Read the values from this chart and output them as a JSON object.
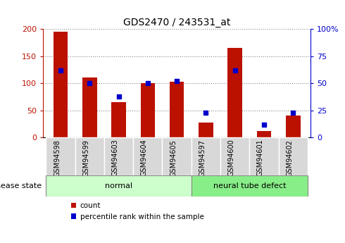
{
  "title": "GDS2470 / 243531_at",
  "categories": [
    "GSM94598",
    "GSM94599",
    "GSM94603",
    "GSM94604",
    "GSM94605",
    "GSM94597",
    "GSM94600",
    "GSM94601",
    "GSM94602"
  ],
  "count_values": [
    195,
    110,
    65,
    100,
    103,
    27,
    165,
    12,
    40
  ],
  "percentile_values": [
    62,
    50,
    38,
    50,
    52,
    23,
    62,
    12,
    23
  ],
  "red_color": "#BB1100",
  "blue_color": "#0000CC",
  "left_ylim": [
    0,
    200
  ],
  "right_ylim": [
    0,
    100
  ],
  "left_yticks": [
    0,
    50,
    100,
    150,
    200
  ],
  "right_yticks": [
    0,
    25,
    50,
    75,
    100
  ],
  "right_yticklabels": [
    "0",
    "25",
    "50",
    "75",
    "100%"
  ],
  "normal_indices": [
    0,
    1,
    2,
    3,
    4
  ],
  "defect_indices": [
    5,
    6,
    7,
    8
  ],
  "normal_label": "normal",
  "defect_label": "neural tube defect",
  "disease_state_label": "disease state",
  "legend_count": "count",
  "legend_percentile": "percentile rank within the sample",
  "normal_color": "#CCFFCC",
  "defect_color": "#88EE88",
  "tick_bg_color": "#D8D8D8",
  "bar_width": 0.5,
  "figsize": [
    4.9,
    3.45
  ],
  "dpi": 100
}
